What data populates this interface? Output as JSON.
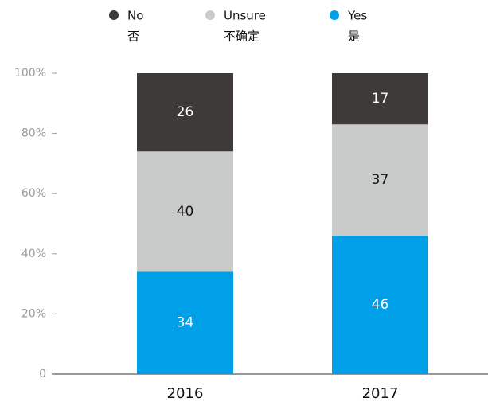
{
  "chart_data": {
    "type": "stacked_bar",
    "categories": [
      "2016",
      "2017"
    ],
    "series": [
      {
        "name": "No",
        "name_cn": "否",
        "color": "#3e3a39",
        "label_color": "#ffffff",
        "values": [
          26,
          17
        ]
      },
      {
        "name": "Unsure",
        "name_cn": "不确定",
        "color": "#c9caca",
        "label_color": "#111111",
        "values": [
          40,
          37
        ]
      },
      {
        "name": "Yes",
        "name_cn": "是",
        "color": "#00a0e9",
        "label_color": "#ffffff",
        "values": [
          34,
          46
        ]
      }
    ],
    "ylim": [
      0,
      100
    ],
    "yticks": [
      0,
      {
        "value": 20,
        "label": "20%"
      },
      {
        "value": 40,
        "label": "40%"
      },
      {
        "value": 60,
        "label": "60%"
      },
      {
        "value": 80,
        "label": "80%"
      },
      {
        "value": 100,
        "label": "100%"
      }
    ],
    "legend": "top"
  }
}
